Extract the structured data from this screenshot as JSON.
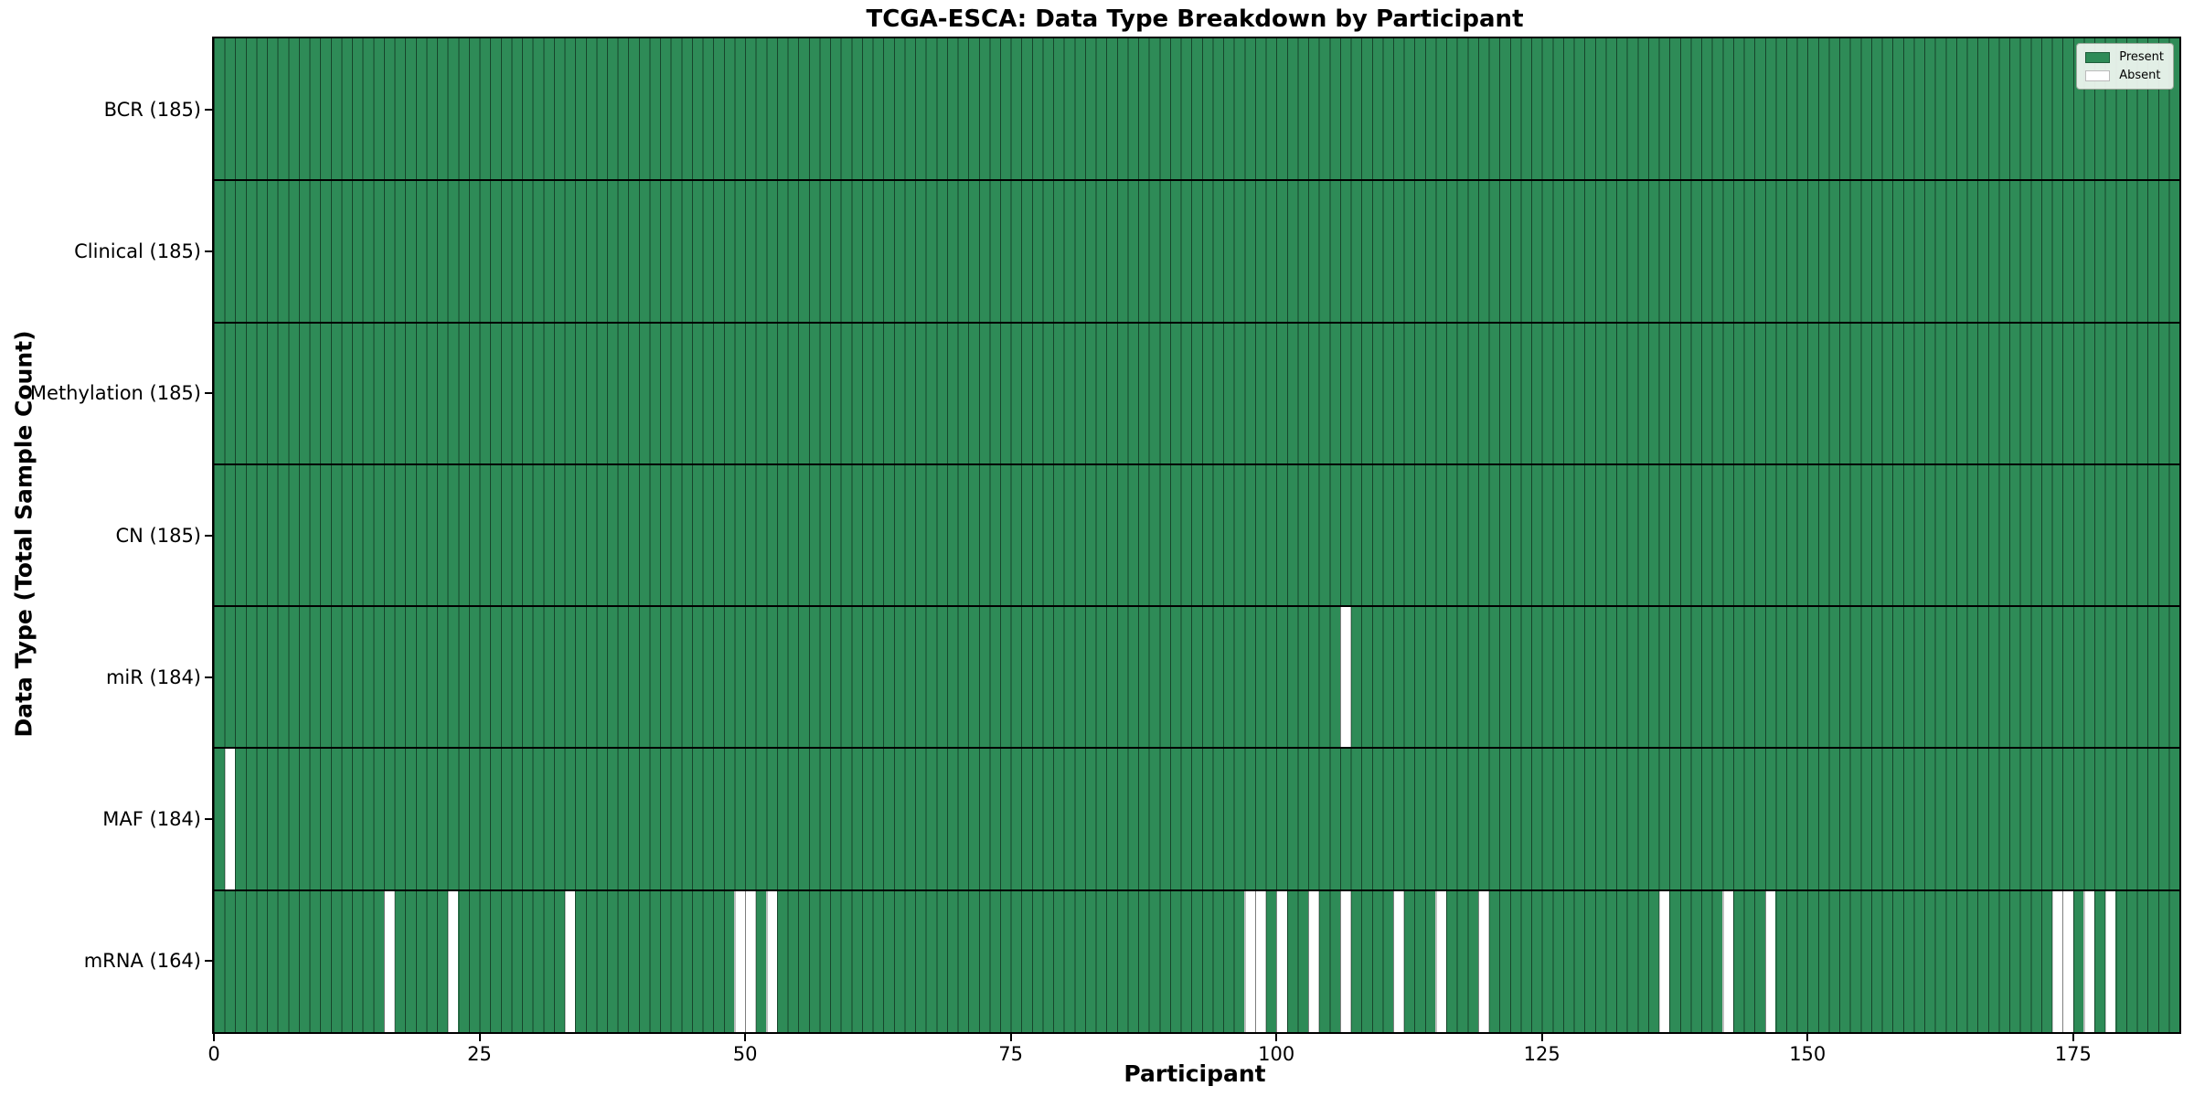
{
  "chart_data": {
    "type": "heatmap",
    "title": "TCGA-ESCA: Data Type Breakdown by Participant",
    "xlabel": "Participant",
    "ylabel": "Data Type (Total Sample Count)",
    "n_participants": 185,
    "x_ticks": [
      0,
      25,
      50,
      75,
      100,
      125,
      150,
      175
    ],
    "grid": "column-separators-on",
    "legend_position": "upper-right",
    "legend": [
      {
        "label": "Present",
        "color": "#2e8b57"
      },
      {
        "label": "Absent",
        "color": "#ffffff"
      }
    ],
    "colors": {
      "present": "#2e8b57",
      "absent": "#ffffff",
      "column_edge": "rgba(0,0,0,0.5)",
      "row_separator": "#000000"
    },
    "rows": [
      {
        "label": "BCR (185)",
        "data_type": "BCR",
        "present_count": 185,
        "absent_participants": []
      },
      {
        "label": "Clinical (185)",
        "data_type": "Clinical",
        "present_count": 185,
        "absent_participants": []
      },
      {
        "label": "Methylation (185)",
        "data_type": "Methylation",
        "present_count": 185,
        "absent_participants": []
      },
      {
        "label": "CN (185)",
        "data_type": "CN",
        "present_count": 185,
        "absent_participants": []
      },
      {
        "label": "miR (184)",
        "data_type": "miR",
        "present_count": 184,
        "absent_participants": [
          106
        ]
      },
      {
        "label": "MAF (184)",
        "data_type": "MAF",
        "present_count": 184,
        "absent_participants": [
          1
        ]
      },
      {
        "label": "mRNA (164)",
        "data_type": "mRNA",
        "present_count": 164,
        "absent_participants": [
          16,
          22,
          33,
          49,
          50,
          52,
          97,
          98,
          100,
          103,
          106,
          111,
          115,
          119,
          136,
          142,
          146,
          173,
          174,
          176,
          178
        ]
      }
    ]
  }
}
